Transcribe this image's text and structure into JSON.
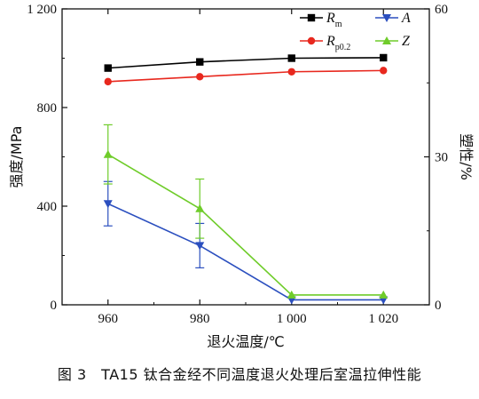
{
  "caption": "图 3　TA15 钛合金经不同温度退火处理后室温拉伸性能",
  "chart_data": {
    "type": "line",
    "x": [
      960,
      980,
      1000,
      1020
    ],
    "x_tick_labels": [
      "960",
      "980",
      "1 000",
      "1 020"
    ],
    "xlabel": "退火温度/℃",
    "ylabel_left": "强度/MPa",
    "ylabel_right": "塑性/%",
    "ylim_left": [
      0,
      1200
    ],
    "ylim_right": [
      0,
      60
    ],
    "y_left_ticks": [
      0,
      400,
      800,
      1200
    ],
    "y_left_tick_labels": [
      "0",
      "400",
      "800",
      "1 200"
    ],
    "y_right_ticks": [
      0,
      30,
      60
    ],
    "y_right_tick_labels": [
      "0",
      "30",
      "60"
    ],
    "legend_placement": "top-right",
    "grid": false,
    "series": [
      {
        "name": "R",
        "sub": "m",
        "axis": "left",
        "color": "#000000",
        "marker": "square",
        "values": [
          960,
          985,
          1000,
          1002
        ]
      },
      {
        "name": "R",
        "sub": "p0.2",
        "axis": "left",
        "color": "#e8281e",
        "marker": "circle",
        "values": [
          905,
          925,
          945,
          950
        ]
      },
      {
        "name": "A",
        "sub": "",
        "axis": "right",
        "color": "#2b4fbf",
        "marker": "triangle-down",
        "values": [
          20.5,
          12,
          1,
          1
        ],
        "errors": [
          4.5,
          4.5,
          0,
          0
        ]
      },
      {
        "name": "Z",
        "sub": "",
        "axis": "right",
        "color": "#6fcc2a",
        "marker": "triangle-up",
        "values": [
          30.5,
          19.5,
          2,
          2
        ],
        "errors": [
          6,
          6,
          0,
          0
        ]
      }
    ]
  }
}
